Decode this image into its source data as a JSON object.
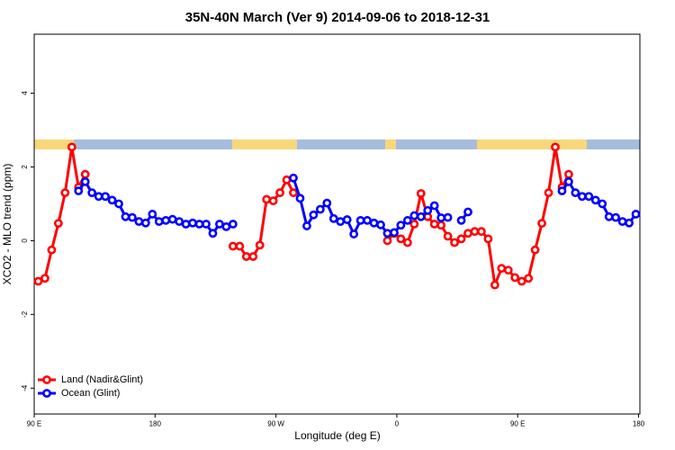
{
  "chart_data": {
    "type": "line",
    "title": "35N-40N March (Ver 9)   2014-09-06 to 2018-12-31",
    "x_label": "Longitude (deg E)",
    "y_label": "XCO2 - MLO trend (ppm)",
    "x": [
      93,
      98,
      103,
      108,
      113,
      118,
      123,
      128,
      133,
      138,
      143,
      148,
      153,
      158,
      163,
      168,
      173,
      178,
      183,
      188,
      193,
      198,
      203,
      208,
      213,
      218,
      223,
      228,
      233,
      238,
      243,
      248,
      253,
      258,
      263,
      268,
      273,
      278,
      283,
      288,
      293,
      298,
      303,
      308,
      313,
      318,
      323,
      328,
      333,
      338,
      343,
      348,
      353,
      358,
      363,
      368,
      373,
      378,
      383,
      388,
      393,
      398,
      403,
      408,
      413,
      418,
      423,
      428,
      433,
      438,
      443,
      448,
      453,
      458,
      463,
      468,
      473,
      478,
      483,
      488,
      493,
      498,
      503,
      508,
      513,
      518,
      523,
      528,
      533,
      538
    ],
    "series": [
      {
        "name": "Land (Nadir&Glint)",
        "color": "#ff0000",
        "values": [
          -1.1,
          -1.02,
          -0.25,
          0.47,
          1.3,
          2.54,
          1.45,
          1.8,
          null,
          null,
          null,
          null,
          null,
          null,
          null,
          null,
          null,
          null,
          null,
          null,
          null,
          null,
          null,
          null,
          null,
          null,
          null,
          null,
          null,
          -0.15,
          -0.15,
          -0.43,
          -0.43,
          -0.12,
          1.12,
          1.08,
          1.3,
          1.65,
          1.3,
          null,
          null,
          null,
          null,
          null,
          null,
          null,
          null,
          null,
          null,
          null,
          null,
          null,
          0.0,
          0.2,
          0.05,
          -0.05,
          0.45,
          1.28,
          0.65,
          0.45,
          0.42,
          0.12,
          -0.05,
          0.05,
          0.2,
          0.25,
          0.25,
          0.05,
          -1.2,
          -0.75,
          -0.8,
          -1.0,
          -1.1,
          -1.02,
          -0.25,
          0.47,
          1.3,
          2.54,
          1.45,
          1.8,
          null,
          null,
          null,
          null,
          null,
          null,
          null,
          null,
          null,
          null
        ]
      },
      {
        "name": "Ocean (Glint)",
        "color": "#0000ff",
        "values": [
          null,
          null,
          null,
          null,
          null,
          null,
          1.35,
          1.6,
          1.3,
          1.2,
          1.2,
          1.1,
          1.0,
          0.65,
          0.63,
          0.52,
          0.48,
          0.72,
          0.52,
          0.55,
          0.58,
          0.52,
          0.45,
          0.48,
          0.45,
          0.45,
          0.2,
          0.45,
          0.38,
          0.45,
          null,
          null,
          null,
          null,
          null,
          null,
          null,
          null,
          1.7,
          1.15,
          0.4,
          0.7,
          0.85,
          1.02,
          0.6,
          0.52,
          0.57,
          0.18,
          0.55,
          0.55,
          0.48,
          0.43,
          0.2,
          0.22,
          0.42,
          0.55,
          0.68,
          0.65,
          0.82,
          0.95,
          0.62,
          0.63,
          null,
          0.55,
          0.78,
          null,
          null,
          null,
          null,
          null,
          null,
          null,
          null,
          null,
          null,
          null,
          null,
          null,
          1.35,
          1.6,
          1.3,
          1.2,
          1.2,
          1.1,
          1.0,
          0.65,
          0.63,
          0.52,
          0.48,
          0.72
        ]
      }
    ],
    "xlim": [
      90,
      541
    ],
    "ylim": [
      -4.7,
      5.6
    ],
    "xticks": [
      {
        "value": 90,
        "label": "90 E"
      },
      180,
      {
        "value": 270,
        "label": "90 W"
      },
      {
        "value": 360,
        "label": "0"
      },
      {
        "value": 450,
        "label": "90 E"
      },
      {
        "value": 540,
        "label": "180"
      }
    ],
    "yticks": [
      -4,
      -2,
      0,
      2,
      4
    ],
    "grid": false,
    "legend": "lower left"
  }
}
